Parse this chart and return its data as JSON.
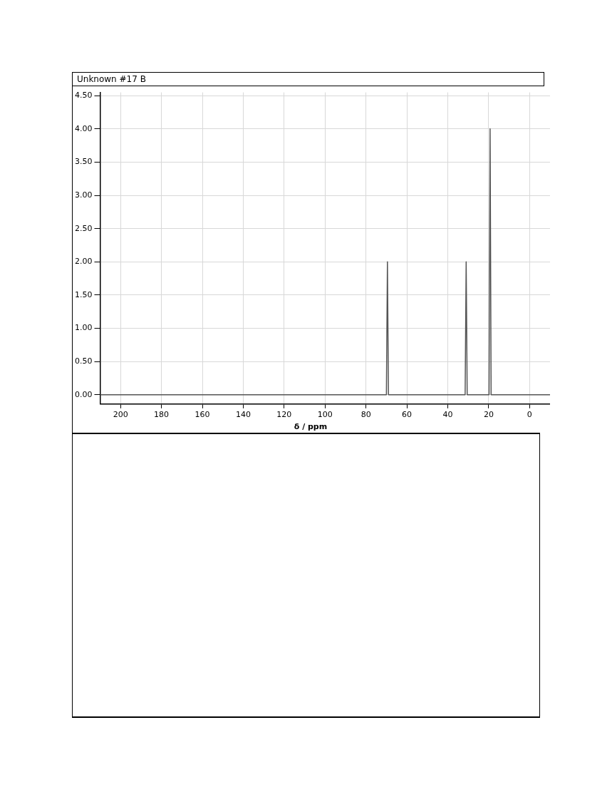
{
  "chart_data": {
    "type": "line",
    "title": "Unknown #17 B",
    "xlabel": "δ / ppm",
    "xlim": [
      210,
      -10
    ],
    "xticks": [
      200,
      180,
      160,
      140,
      120,
      100,
      80,
      60,
      40,
      20,
      0
    ],
    "ylim": [
      -0.14,
      4.55
    ],
    "yticks": [
      {
        "value": 0,
        "label": "0.00"
      },
      {
        "value": 0.5,
        "label": "0.50"
      },
      {
        "value": 1,
        "label": "1.00"
      },
      {
        "value": 1.5,
        "label": "1.50"
      },
      {
        "value": 2,
        "label": "2.00"
      },
      {
        "value": 2.5,
        "label": "2.50"
      },
      {
        "value": 3,
        "label": "3.00"
      },
      {
        "value": 3.5,
        "label": "3.50"
      },
      {
        "value": 4,
        "label": "4.00"
      },
      {
        "value": 4.5,
        "label": "4.50"
      }
    ],
    "grid": true,
    "legend": false,
    "marker": "none",
    "line_style": "solid",
    "series": [
      {
        "color": "#555555",
        "x": [
          210,
          70,
          69.5,
          69,
          31.5,
          31,
          30.5,
          19.8,
          19.3,
          18.8,
          -10
        ],
        "values": [
          0,
          0,
          2,
          0,
          0,
          2,
          0,
          0,
          4,
          0,
          0
        ]
      }
    ]
  }
}
